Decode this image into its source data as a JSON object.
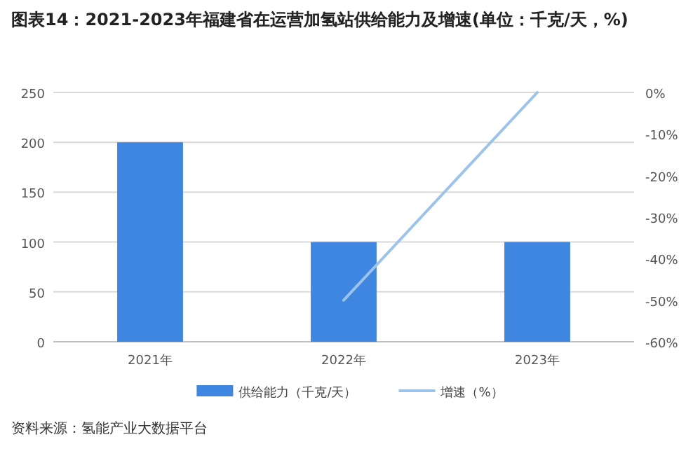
{
  "chart_data": {
    "type": "bar",
    "title": "图表14：2021-2023年福建省在运营加氢站供给能力及增速(单位：千克/天，%)",
    "categories": [
      "2021年",
      "2022年",
      "2023年"
    ],
    "series": [
      {
        "name": "供给能力（千克/天）",
        "color": "#3e86e0",
        "values": [
          200,
          100,
          100
        ]
      },
      {
        "name": "增速（%）",
        "type": "line",
        "axis": "y2",
        "color": "#9cc3ea",
        "values": [
          null,
          -50,
          0
        ]
      }
    ],
    "ylim": [
      0,
      250
    ],
    "yticks": [
      0,
      50,
      100,
      150,
      200,
      250
    ],
    "y2lim": [
      -60,
      0
    ],
    "y2ticks": [
      {
        "value": -60,
        "label": "-60%"
      },
      {
        "value": -50,
        "label": "-50%"
      },
      {
        "value": -40,
        "label": "-40%"
      },
      {
        "value": -30,
        "label": "-30%"
      },
      {
        "value": -20,
        "label": "-20%"
      },
      {
        "value": -10,
        "label": "-10%"
      },
      {
        "value": 0,
        "label": "0%"
      }
    ],
    "grid": "y",
    "legend": "bottom",
    "annotations": [
      "资料来源：氢能产业大数据平台"
    ]
  }
}
